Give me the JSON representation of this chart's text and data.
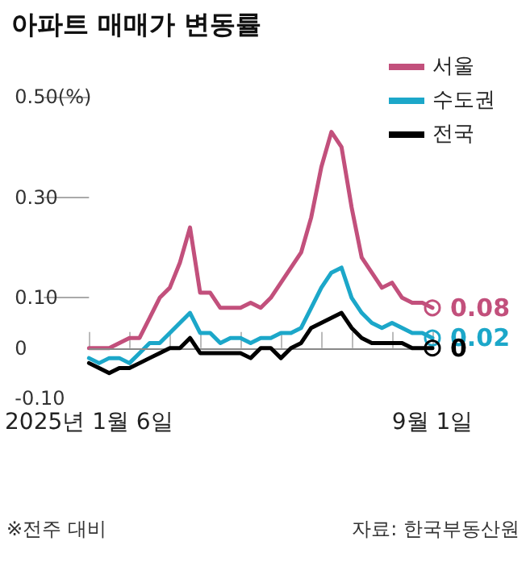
{
  "chart_data": {
    "type": "line",
    "title": "아파트 매매가 변동률",
    "annotations": [
      "※전주 대비",
      "자료: 한국부동산원"
    ],
    "categories": [
      "2025년 1월 6일",
      null,
      null,
      null,
      null,
      null,
      null,
      null,
      null,
      null,
      null,
      null,
      null,
      null,
      null,
      null,
      null,
      null,
      null,
      null,
      null,
      null,
      null,
      null,
      null,
      null,
      null,
      null,
      null,
      null,
      null,
      null,
      null,
      null,
      "9월 1일"
    ],
    "series": [
      {
        "name": "서울",
        "color": "#c2507c",
        "values": [
          0.0,
          0.0,
          0.0,
          0.01,
          0.02,
          0.02,
          0.06,
          0.1,
          0.12,
          0.17,
          0.24,
          0.11,
          0.11,
          0.08,
          0.08,
          0.08,
          0.09,
          0.08,
          0.1,
          0.13,
          0.16,
          0.19,
          0.26,
          0.36,
          0.43,
          0.4,
          0.28,
          0.18,
          0.15,
          0.12,
          0.13,
          0.1,
          0.09,
          0.09,
          0.08
        ],
        "value_labels": [
          null,
          null,
          null,
          null,
          null,
          null,
          null,
          null,
          null,
          null,
          null,
          null,
          null,
          null,
          null,
          null,
          null,
          null,
          null,
          null,
          null,
          null,
          null,
          null,
          null,
          null,
          null,
          null,
          null,
          null,
          null,
          null,
          null,
          null,
          "0.08"
        ]
      },
      {
        "name": "수도권",
        "color": "#1ca7c9",
        "values": [
          -0.02,
          -0.03,
          -0.02,
          -0.02,
          -0.03,
          -0.01,
          0.01,
          0.01,
          0.03,
          0.05,
          0.07,
          0.03,
          0.03,
          0.01,
          0.02,
          0.02,
          0.01,
          0.02,
          0.02,
          0.03,
          0.03,
          0.04,
          0.08,
          0.12,
          0.15,
          0.16,
          0.1,
          0.07,
          0.05,
          0.04,
          0.05,
          0.04,
          0.03,
          0.03,
          0.02
        ],
        "value_labels": [
          null,
          null,
          null,
          null,
          null,
          null,
          null,
          null,
          null,
          null,
          null,
          null,
          null,
          null,
          null,
          null,
          null,
          null,
          null,
          null,
          null,
          null,
          null,
          null,
          null,
          null,
          null,
          null,
          null,
          null,
          null,
          null,
          null,
          null,
          "0.02"
        ]
      },
      {
        "name": "전국",
        "color": "#000000",
        "values": [
          -0.03,
          -0.04,
          -0.05,
          -0.04,
          -0.04,
          -0.03,
          -0.02,
          -0.01,
          0.0,
          0.0,
          0.02,
          -0.01,
          -0.01,
          -0.01,
          -0.01,
          -0.01,
          -0.02,
          0.0,
          0.0,
          -0.02,
          0.0,
          0.01,
          0.04,
          0.05,
          0.06,
          0.07,
          0.04,
          0.02,
          0.01,
          0.01,
          0.01,
          0.01,
          0.0,
          0.0,
          0.0
        ],
        "value_labels": [
          null,
          null,
          null,
          null,
          null,
          null,
          null,
          null,
          null,
          null,
          null,
          null,
          null,
          null,
          null,
          null,
          null,
          null,
          null,
          null,
          null,
          null,
          null,
          null,
          null,
          null,
          null,
          null,
          null,
          null,
          null,
          null,
          null,
          null,
          "0"
        ]
      }
    ],
    "ylim": [
      -0.1,
      0.5
    ],
    "yticks": [
      {
        "value": 0.5,
        "label": "0.50(%)"
      },
      {
        "value": 0.3,
        "label": "0.30"
      },
      {
        "value": 0.1,
        "label": "0.10"
      },
      {
        "value": 0,
        "label": "0"
      },
      {
        "value": -0.1,
        "label": "-0.10"
      }
    ],
    "ref_lines": [
      {
        "axis": "y",
        "value": 0,
        "label": null,
        "color": "#888888"
      }
    ],
    "grid": false,
    "legend": "top right",
    "line_style": "solid"
  }
}
